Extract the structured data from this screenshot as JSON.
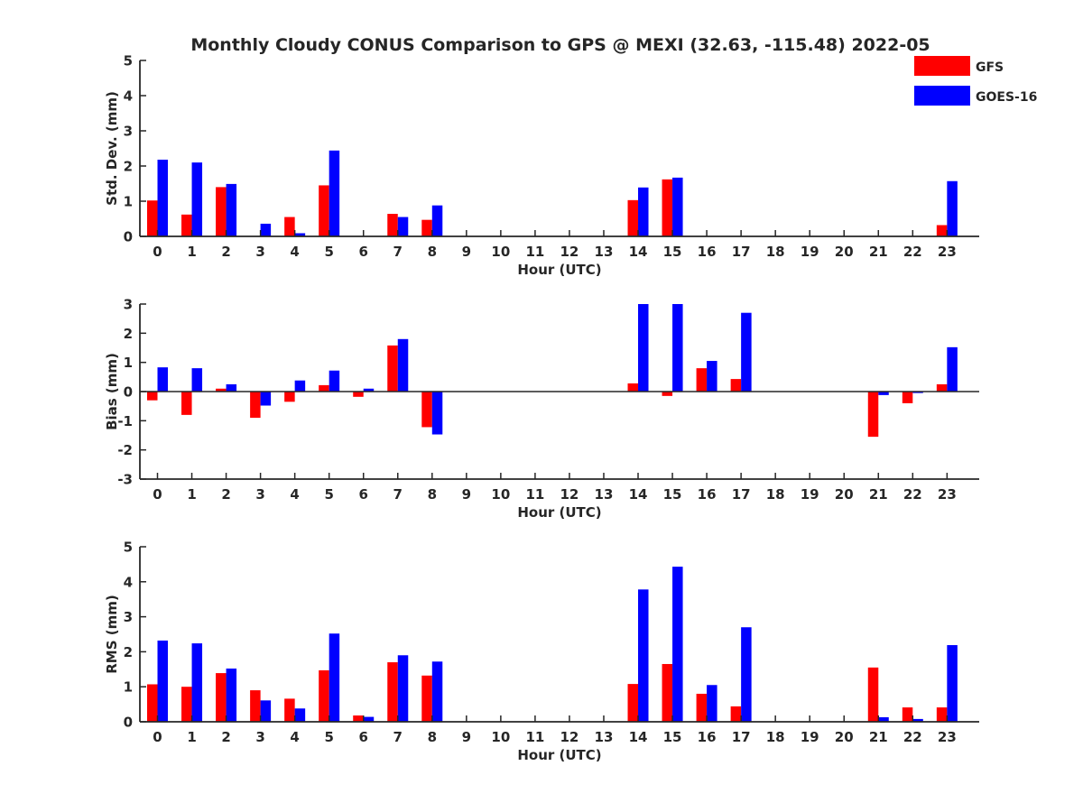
{
  "title": "Monthly Cloudy CONUS Comparison to GPS @ MEXI (32.63, -115.48) 2022-05",
  "legend": {
    "placement": "top-right",
    "entries": [
      {
        "name": "GFS",
        "color": "#ff0000"
      },
      {
        "name": "GOES-16",
        "color": "#0000ff"
      }
    ]
  },
  "chart_data": [
    {
      "type": "bar",
      "xlabel": "Hour (UTC)",
      "ylabel": "Std. Dev. (mm)",
      "ylim": [
        0,
        5
      ],
      "yticks": [
        0,
        1,
        2,
        3,
        4,
        5
      ],
      "categories": [
        "0",
        "1",
        "2",
        "3",
        "4",
        "5",
        "6",
        "7",
        "8",
        "9",
        "10",
        "11",
        "12",
        "13",
        "14",
        "15",
        "16",
        "17",
        "18",
        "19",
        "20",
        "21",
        "22",
        "23"
      ],
      "series": [
        {
          "name": "GFS",
          "color": "#ff0000",
          "values": [
            1.02,
            0.62,
            1.4,
            0,
            0.55,
            1.45,
            0,
            0.64,
            0.47,
            0,
            0,
            0,
            0,
            0,
            1.03,
            1.62,
            0,
            0,
            0,
            0,
            0,
            0,
            0,
            0.32
          ]
        },
        {
          "name": "GOES-16",
          "color": "#0000ff",
          "values": [
            2.18,
            2.1,
            1.49,
            0.36,
            0.09,
            2.44,
            0,
            0.55,
            0.88,
            0,
            0,
            0,
            0,
            0,
            1.39,
            1.67,
            0,
            0,
            0,
            0,
            0,
            0,
            0,
            1.57
          ]
        }
      ]
    },
    {
      "type": "bar",
      "xlabel": "Hour (UTC)",
      "ylabel": "Bias (mm)",
      "ylim": [
        -3,
        3
      ],
      "yticks": [
        -3,
        -2,
        -1,
        0,
        1,
        2,
        3
      ],
      "categories": [
        "0",
        "1",
        "2",
        "3",
        "4",
        "5",
        "6",
        "7",
        "8",
        "9",
        "10",
        "11",
        "12",
        "13",
        "14",
        "15",
        "16",
        "17",
        "18",
        "19",
        "20",
        "21",
        "22",
        "23"
      ],
      "series": [
        {
          "name": "GFS",
          "color": "#ff0000",
          "values": [
            -0.3,
            -0.8,
            0.1,
            -0.9,
            -0.35,
            0.22,
            -0.18,
            1.58,
            -1.22,
            0,
            0,
            0,
            0,
            0,
            0.28,
            -0.15,
            0.8,
            0.43,
            0,
            0,
            0,
            -1.55,
            -0.4,
            0.25
          ]
        },
        {
          "name": "GOES-16",
          "color": "#0000ff",
          "values": [
            0.83,
            0.8,
            0.25,
            -0.48,
            0.38,
            0.72,
            0.1,
            1.8,
            -1.47,
            0,
            0,
            0,
            0,
            0,
            3.0,
            3.0,
            1.05,
            2.7,
            0,
            0,
            0,
            -0.12,
            -0.05,
            1.52
          ]
        }
      ]
    },
    {
      "type": "bar",
      "xlabel": "Hour (UTC)",
      "ylabel": "RMS (mm)",
      "ylim": [
        0,
        5
      ],
      "yticks": [
        0,
        1,
        2,
        3,
        4,
        5
      ],
      "categories": [
        "0",
        "1",
        "2",
        "3",
        "4",
        "5",
        "6",
        "7",
        "8",
        "9",
        "10",
        "11",
        "12",
        "13",
        "14",
        "15",
        "16",
        "17",
        "18",
        "19",
        "20",
        "21",
        "22",
        "23"
      ],
      "series": [
        {
          "name": "GFS",
          "color": "#ff0000",
          "values": [
            1.07,
            1.0,
            1.39,
            0.9,
            0.66,
            1.47,
            0.18,
            1.7,
            1.32,
            0,
            0,
            0,
            0,
            0,
            1.08,
            1.65,
            0.8,
            0.44,
            0,
            0,
            0,
            1.55,
            0.41,
            0.41
          ]
        },
        {
          "name": "GOES-16",
          "color": "#0000ff",
          "values": [
            2.32,
            2.24,
            1.52,
            0.61,
            0.38,
            2.52,
            0.14,
            1.9,
            1.72,
            0,
            0,
            0,
            0,
            0,
            3.78,
            4.43,
            1.05,
            2.7,
            0,
            0,
            0,
            0.13,
            0.08,
            2.19
          ]
        }
      ]
    }
  ]
}
